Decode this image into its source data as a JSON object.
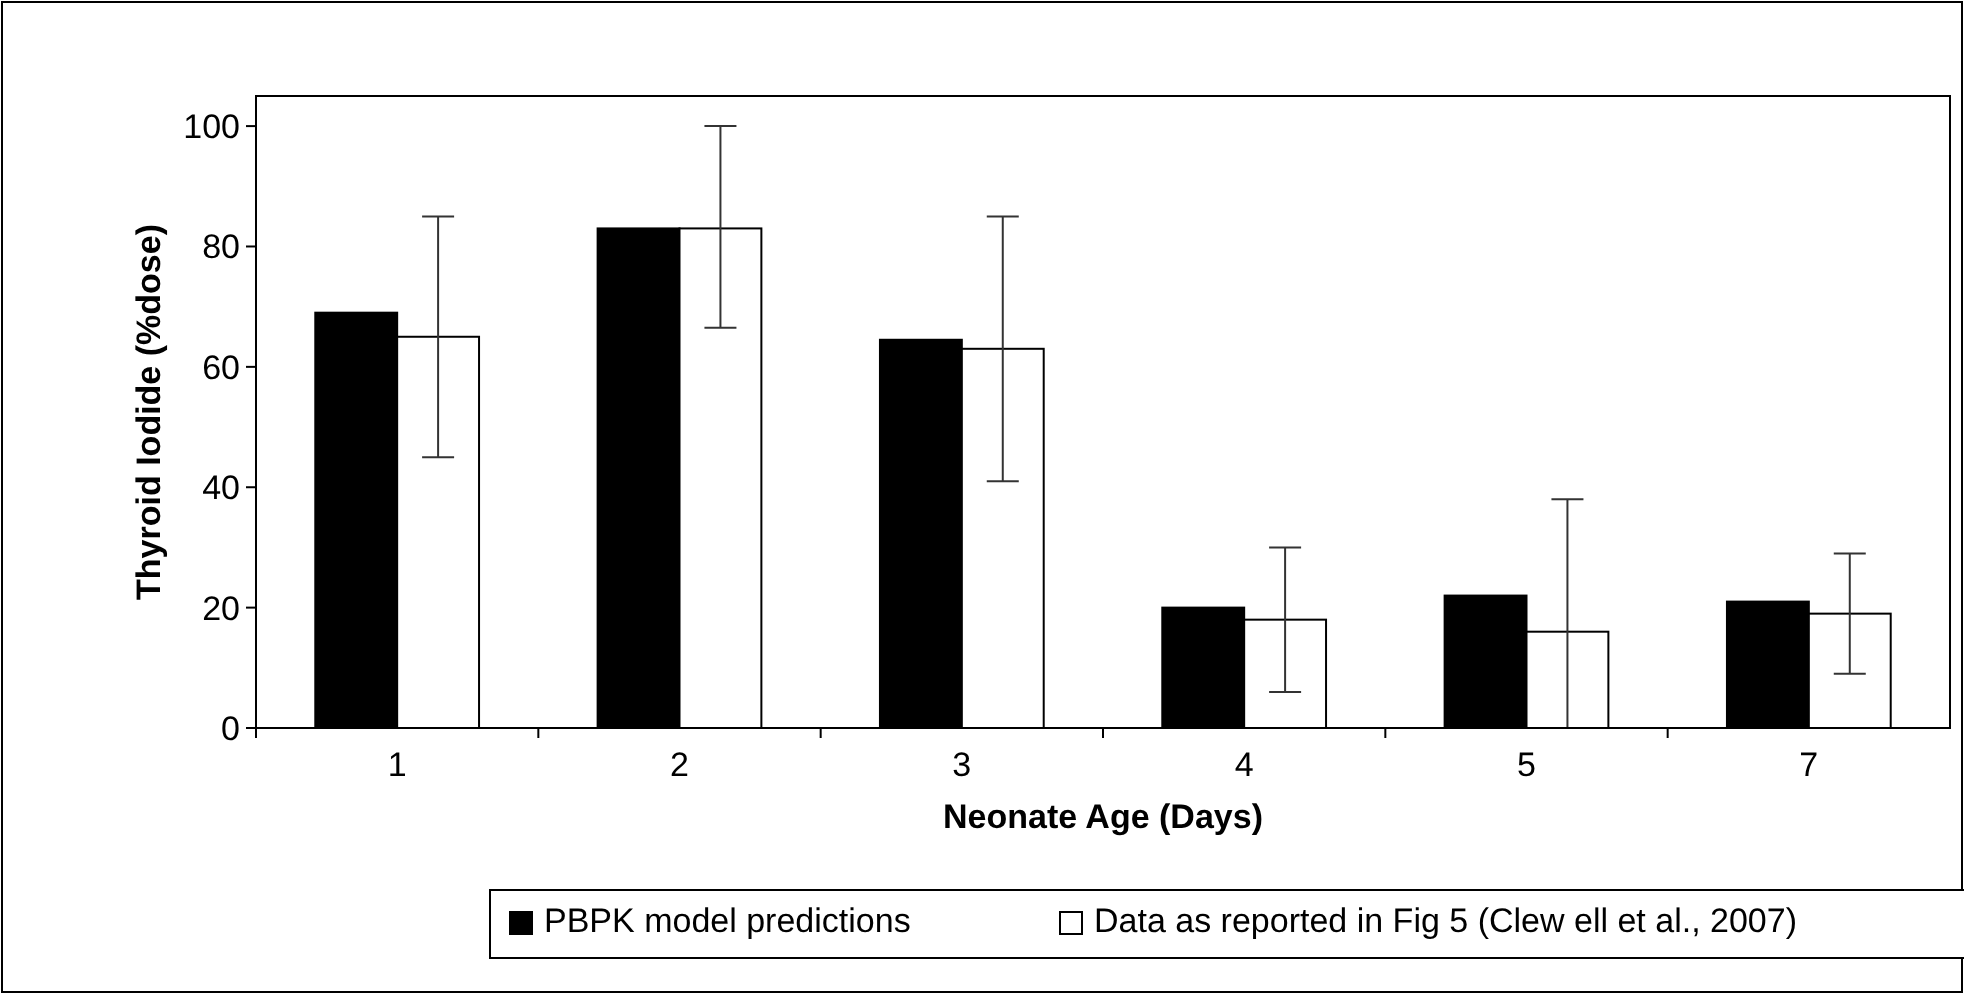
{
  "chart_data": {
    "type": "bar",
    "xlabel": "Neonate Age (Days)",
    "ylabel": "Thyroid Iodide (%dose)",
    "categories": [
      "1",
      "2",
      "3",
      "4",
      "5",
      "7"
    ],
    "series": [
      {
        "name": "PBPK model predictions",
        "color": "#000000",
        "values": [
          69,
          83,
          64.5,
          20,
          22,
          21
        ]
      },
      {
        "name": "Data as reported in Fig 5 (Clew ell et al., 2007)",
        "color": "#ffffff",
        "values": [
          65,
          83,
          63,
          18,
          16,
          19
        ],
        "errors": [
          [
            45,
            85
          ],
          [
            66.5,
            100
          ],
          [
            41,
            85
          ],
          [
            6,
            30
          ],
          [
            0,
            38
          ],
          [
            9,
            29
          ]
        ]
      }
    ],
    "ylim": [
      0,
      105
    ],
    "yticks": [
      0,
      20,
      40,
      60,
      80,
      100
    ],
    "grid": false,
    "legend": "bottom"
  }
}
